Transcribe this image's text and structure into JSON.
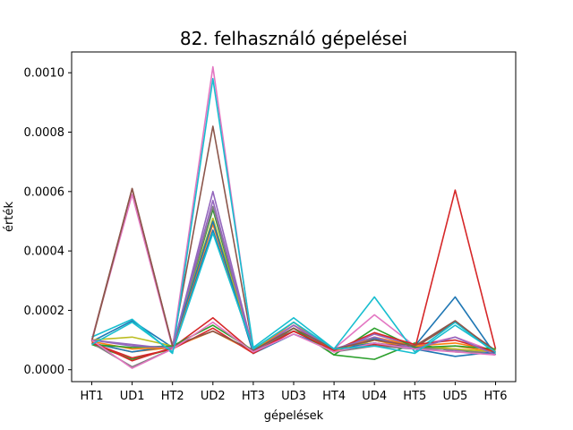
{
  "chart_data": {
    "type": "line",
    "title": "82. felhasználó gépelései",
    "xlabel": "gépelések",
    "ylabel": "érték",
    "categories": [
      "HT1",
      "UD1",
      "HT2",
      "UD2",
      "HT3",
      "UD3",
      "HT4",
      "UD4",
      "HT5",
      "UD5",
      "HT6"
    ],
    "ylim": [
      -4e-05,
      0.00107
    ],
    "yticks": [
      "0.0000",
      "0.0002",
      "0.0004",
      "0.0006",
      "0.0008",
      "0.0010"
    ],
    "ytick_values": [
      0,
      0.0002,
      0.0004,
      0.0006,
      0.0008,
      0.001
    ],
    "grid": false,
    "series": [
      {
        "color": "#1f77b4",
        "values": [
          9.5e-05,
          0.000165,
          7.5e-05,
          0.00047,
          6.5e-05,
          0.00015,
          7e-05,
          0.000105,
          8e-05,
          0.000245,
          5e-05
        ]
      },
      {
        "color": "#ff7f0e",
        "values": [
          9e-05,
          6e-05,
          7.5e-05,
          0.00049,
          6e-05,
          0.00015,
          6e-05,
          0.0001,
          7e-05,
          8e-05,
          6e-05
        ]
      },
      {
        "color": "#2ca02c",
        "values": [
          8.5e-05,
          3.5e-05,
          7e-05,
          0.00054,
          5.5e-05,
          0.00014,
          5e-05,
          3.5e-05,
          9e-05,
          6e-05,
          5.5e-05
        ]
      },
      {
        "color": "#d62728",
        "values": [
          9.5e-05,
          3e-05,
          7.5e-05,
          0.000175,
          6e-05,
          0.00013,
          6.5e-05,
          8.5e-05,
          7e-05,
          0.000605,
          7e-05
        ]
      },
      {
        "color": "#9467bd",
        "values": [
          0.0001,
          8.5e-05,
          7e-05,
          0.0006,
          6.5e-05,
          0.00015,
          6e-05,
          0.00012,
          8e-05,
          6.5e-05,
          6e-05
        ]
      },
      {
        "color": "#8c564b",
        "values": [
          0.0001,
          0.00061,
          8e-05,
          0.00082,
          7e-05,
          0.00013,
          7e-05,
          9e-05,
          7.5e-05,
          0.00016,
          6.5e-05
        ]
      },
      {
        "color": "#e377c2",
        "values": [
          0.0001,
          0.00059,
          7.5e-05,
          0.00102,
          6.5e-05,
          0.00015,
          7e-05,
          0.000185,
          8e-05,
          0.00011,
          6e-05
        ]
      },
      {
        "color": "#7f7f7f",
        "values": [
          9e-05,
          1e-05,
          7e-05,
          0.00055,
          6e-05,
          0.00014,
          6e-05,
          8e-05,
          7e-05,
          7e-05,
          5e-05
        ]
      },
      {
        "color": "#bcbd22",
        "values": [
          0.0001,
          0.00011,
          8e-05,
          0.00051,
          6.5e-05,
          0.00016,
          6e-05,
          0.0001,
          8e-05,
          7e-05,
          6e-05
        ]
      },
      {
        "color": "#17becf",
        "values": [
          0.00011,
          0.00017,
          5.5e-05,
          0.00098,
          7.5e-05,
          0.000175,
          7e-05,
          0.000245,
          6e-05,
          0.00016,
          5.5e-05
        ]
      },
      {
        "color": "#1f77b4",
        "values": [
          9e-05,
          6e-05,
          8e-05,
          0.0005,
          5.5e-05,
          0.00012,
          7e-05,
          9e-05,
          7e-05,
          4.5e-05,
          6e-05
        ]
      },
      {
        "color": "#ff7f0e",
        "values": [
          9.5e-05,
          7e-05,
          7.5e-05,
          0.00013,
          6e-05,
          0.00016,
          6e-05,
          0.00011,
          8e-05,
          9e-05,
          6.5e-05
        ]
      },
      {
        "color": "#2ca02c",
        "values": [
          8.5e-05,
          7.5e-05,
          8e-05,
          0.00015,
          6.5e-05,
          0.00014,
          5e-05,
          0.00014,
          7.5e-05,
          8e-05,
          7e-05
        ]
      },
      {
        "color": "#d62728",
        "values": [
          9e-05,
          4e-05,
          7e-05,
          0.00014,
          5.5e-05,
          0.00013,
          6.5e-05,
          0.000125,
          8.5e-05,
          0.0001,
          6e-05
        ]
      },
      {
        "color": "#9467bd",
        "values": [
          0.0001,
          8e-05,
          7.5e-05,
          0.00057,
          6e-05,
          0.00015,
          7e-05,
          0.00011,
          7e-05,
          0.00011,
          5e-05
        ]
      },
      {
        "color": "#8c564b",
        "values": [
          9.5e-05,
          0.00061,
          8e-05,
          0.00013,
          6.5e-05,
          0.00014,
          7e-05,
          0.0001,
          8e-05,
          0.000165,
          6e-05
        ]
      },
      {
        "color": "#e377c2",
        "values": [
          0.0001,
          5e-06,
          7e-05,
          0.00016,
          6e-05,
          0.00012,
          6e-05,
          9e-05,
          7e-05,
          6e-05,
          5e-05
        ]
      },
      {
        "color": "#17becf",
        "values": [
          8.5e-05,
          0.00016,
          6e-05,
          0.00046,
          7e-05,
          0.00016,
          7e-05,
          8e-05,
          5.5e-05,
          0.00015,
          6e-05
        ]
      }
    ]
  }
}
